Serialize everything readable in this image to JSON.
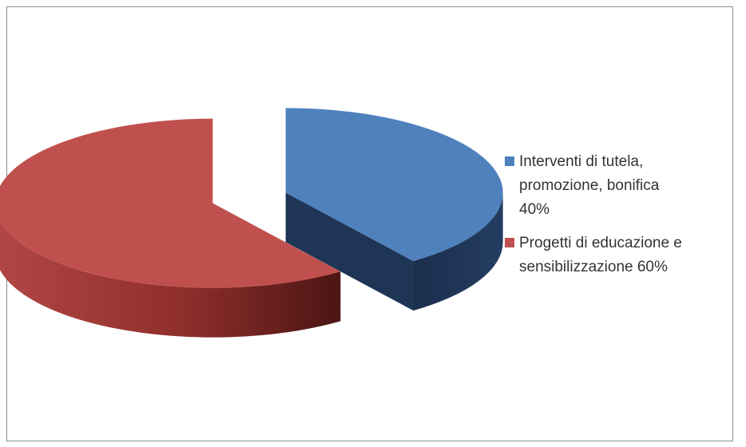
{
  "chart_data": {
    "type": "pie",
    "title": "",
    "series": [
      {
        "values": [
          40,
          60
        ],
        "categories": [
          "Interventi di tutela, promozione, bonifica 40%",
          "Progetti di educazione e sensibilizzazione 60%"
        ]
      }
    ],
    "legend_position": "right",
    "style": "3d-exploded",
    "colors": {
      "slice_0": "#4f81bd",
      "slice_0_side": "#1f3556",
      "slice_1": "#c0504d",
      "slice_1_side": "#7d2724"
    }
  },
  "legend": {
    "items": [
      {
        "lines": [
          "Interventi di tutela,",
          "promozione, bonifica",
          "40%"
        ],
        "color": "#4f81bd"
      },
      {
        "lines": [
          "Progetti di educazione e",
          "sensibilizzazione 60%"
        ],
        "color": "#c0504d"
      }
    ]
  }
}
